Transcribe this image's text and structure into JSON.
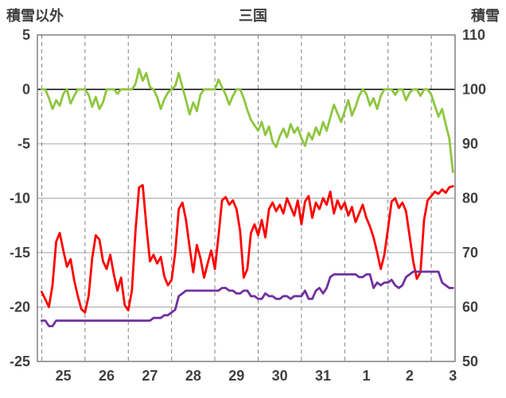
{
  "header": {
    "left_axis_title": "積雪以外",
    "title": "三国",
    "right_axis_title": "積雪"
  },
  "chart_data": {
    "type": "line",
    "title": "三国",
    "grid": {
      "horizontal": "solid",
      "vertical": "dashed",
      "zero_line": "solid-black"
    },
    "colors": {
      "frame": "#808080",
      "grid": "#a6a6a6",
      "zero_line": "#000000",
      "text": "#3f3f3f"
    },
    "left_axis": {
      "label": "積雪以外",
      "min": -25,
      "max": 5,
      "ticks": [
        5,
        0,
        -5,
        -10,
        -15,
        -20,
        -25
      ]
    },
    "right_axis": {
      "label": "積雪",
      "min": 50,
      "max": 110,
      "ticks": [
        110,
        100,
        90,
        80,
        70,
        60,
        50
      ]
    },
    "x_axis": {
      "day_labels": [
        "25",
        "26",
        "27",
        "28",
        "29",
        "30",
        "31",
        "1",
        "2",
        "3"
      ],
      "domain_days": [
        -0.1,
        9.55
      ],
      "step_hours": 2
    },
    "series": [
      {
        "name": "temperature-green",
        "color": "#8dc63f",
        "axis": "left",
        "values": [
          0,
          0,
          -0.8,
          -1.8,
          -1.0,
          -1.5,
          -0.4,
          0,
          -1.3,
          -0.6,
          0,
          0,
          0,
          -0.5,
          -1.6,
          -0.7,
          -1.8,
          -1.2,
          0,
          0,
          0,
          -0.4,
          0,
          0,
          0,
          0,
          0.5,
          1.9,
          0.8,
          1.5,
          0.2,
          0,
          -0.7,
          -1.8,
          -0.9,
          -0.3,
          0,
          0.3,
          1.5,
          0.2,
          -1.0,
          -2.3,
          -1.2,
          -2.0,
          -0.5,
          0,
          0,
          0,
          0,
          0.9,
          0.2,
          -0.5,
          -1.4,
          -0.6,
          0,
          0,
          -0.8,
          -1.9,
          -2.8,
          -3.3,
          -3.8,
          -3.0,
          -4.2,
          -3.4,
          -4.8,
          -5.3,
          -4.3,
          -3.6,
          -4.4,
          -3.2,
          -4.0,
          -3.5,
          -4.5,
          -5.2,
          -4.0,
          -4.6,
          -3.5,
          -4.2,
          -3.0,
          -3.8,
          -2.6,
          -1.4,
          -2.2,
          -3.0,
          -2.0,
          -1.0,
          -2.4,
          -1.6,
          -0.6,
          0,
          -0.4,
          -1.5,
          -0.8,
          -1.8,
          -0.6,
          0,
          0,
          0,
          -0.5,
          0,
          0,
          -1.0,
          -0.3,
          0,
          0,
          -0.6,
          0,
          0,
          -0.5,
          -1.5,
          -2.5,
          -1.8,
          -3.2,
          -4.5,
          -7.6
        ]
      },
      {
        "name": "temperature-red",
        "color": "#ff0000",
        "axis": "left",
        "values": [
          -18.6,
          -19.3,
          -20.0,
          -18.0,
          -14.0,
          -13.2,
          -14.8,
          -16.3,
          -15.6,
          -17.5,
          -19.0,
          -20.2,
          -20.5,
          -19.0,
          -15.5,
          -13.4,
          -13.8,
          -15.8,
          -16.5,
          -15.2,
          -17.0,
          -18.5,
          -17.3,
          -19.8,
          -20.3,
          -18.5,
          -13.0,
          -9.0,
          -8.8,
          -12.5,
          -15.8,
          -15.2,
          -16.0,
          -15.4,
          -17.2,
          -18.0,
          -17.5,
          -15.0,
          -11.0,
          -10.4,
          -12.0,
          -14.5,
          -16.8,
          -14.3,
          -15.5,
          -17.3,
          -16.0,
          -14.8,
          -16.5,
          -13.5,
          -10.2,
          -9.9,
          -10.6,
          -10.2,
          -11.0,
          -13.0,
          -17.3,
          -16.5,
          -13.2,
          -12.4,
          -13.4,
          -12.0,
          -13.6,
          -11.0,
          -10.4,
          -11.2,
          -10.6,
          -11.4,
          -10.0,
          -10.8,
          -11.6,
          -10.2,
          -12.4,
          -10.3,
          -9.8,
          -11.8,
          -10.4,
          -11.0,
          -10.0,
          -10.6,
          -9.4,
          -11.4,
          -10.2,
          -11.0,
          -10.4,
          -11.6,
          -10.8,
          -12.2,
          -11.4,
          -10.6,
          -11.8,
          -12.6,
          -13.6,
          -15.0,
          -16.5,
          -15.2,
          -12.8,
          -10.3,
          -10.0,
          -10.9,
          -10.4,
          -11.2,
          -13.5,
          -15.8,
          -17.4,
          -16.8,
          -12.0,
          -10.2,
          -9.8,
          -9.4,
          -9.6,
          -9.2,
          -9.5,
          -9.0,
          -8.9
        ]
      },
      {
        "name": "snow-depth-purple",
        "color": "#7030a0",
        "axis": "right",
        "values": [
          57.5,
          57.5,
          56.5,
          56.5,
          57.5,
          57.5,
          57.5,
          57.5,
          57.5,
          57.5,
          57.5,
          57.5,
          57.5,
          57.5,
          57.5,
          57.5,
          57.5,
          57.5,
          57.5,
          57.5,
          57.5,
          57.5,
          57.5,
          57.5,
          57.5,
          57.5,
          57.5,
          57.5,
          57.5,
          57.5,
          57.5,
          58,
          58,
          58,
          58.5,
          58.5,
          59,
          59.5,
          62,
          62.5,
          63,
          63,
          63,
          63,
          63,
          63,
          63,
          63,
          63,
          63,
          63.5,
          63.5,
          63,
          63,
          62.5,
          62.5,
          63,
          63,
          62,
          62,
          61.5,
          61.5,
          62.5,
          62,
          62,
          61.5,
          61.5,
          62,
          62,
          61.5,
          62,
          62,
          62,
          63,
          61.5,
          61.5,
          63,
          63.5,
          62.5,
          63.5,
          65.5,
          66,
          66,
          66,
          66,
          66,
          66,
          66,
          65.5,
          65.5,
          66,
          66,
          63.5,
          64.5,
          64,
          64.5,
          64.5,
          65,
          64,
          63.5,
          64,
          65.5,
          66,
          66.5,
          66.5,
          66.5,
          66.5,
          66.5,
          66.5,
          66.5,
          66.5,
          64.5,
          64,
          63.5,
          63.5
        ]
      }
    ]
  }
}
